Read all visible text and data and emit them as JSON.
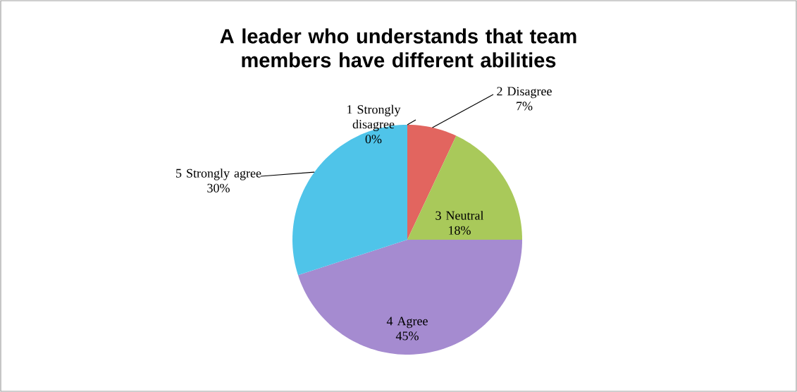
{
  "chart_data": {
    "type": "pie",
    "title": "A leader who understands that team members have different abilities",
    "categories": [
      "1 Strongly disagree",
      "2 Disagree",
      "3 Neutral",
      "4 Agree",
      "5 Strongly agree"
    ],
    "values": [
      0,
      7,
      18,
      45,
      30
    ],
    "value_labels": [
      "0%",
      "7%",
      "18%",
      "45%",
      "30%"
    ],
    "colors": [
      "#c0392b",
      "#e2655f",
      "#a9c95a",
      "#a58bd0",
      "#4fc4e9"
    ]
  }
}
